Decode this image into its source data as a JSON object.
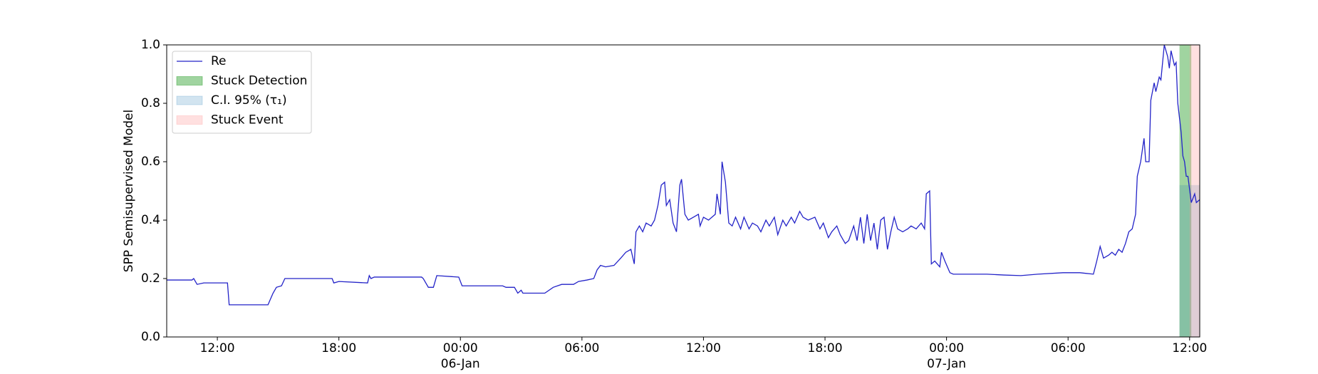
{
  "chart_data": {
    "type": "line",
    "ylabel": "SPP Semisupervised Model",
    "xlim": [
      "1900-01-05 09:30",
      "1900-01-07 12:30"
    ],
    "xticks": [
      {
        "value": "1900-01-05 12:00",
        "label": "12:00"
      },
      {
        "value": "1900-01-05 18:00",
        "label": "18:00"
      },
      {
        "value": "1900-01-06 00:00",
        "label": "00:00\n06-Jan\n1900"
      },
      {
        "value": "1900-01-06 06:00",
        "label": "06:00"
      },
      {
        "value": "1900-01-06 12:00",
        "label": "12:00"
      },
      {
        "value": "1900-01-06 18:00",
        "label": "18:00"
      },
      {
        "value": "1900-01-07 00:00",
        "label": "00:00\n07-Jan"
      },
      {
        "value": "1900-01-07 06:00",
        "label": "06:00"
      },
      {
        "value": "1900-01-07 12:00",
        "label": "12:00"
      }
    ],
    "ylim": [
      0,
      1
    ],
    "yticks": [
      {
        "value": 0,
        "label": "0.0"
      },
      0.2,
      0.4,
      0.6,
      0.8,
      {
        "value": 1,
        "label": "1.0"
      }
    ],
    "legend": "upper left",
    "x": [
      "1900-01-05 09:30",
      "1900-01-05 10:45",
      "1900-01-05 10:50",
      "1900-01-05 11:00",
      "1900-01-05 11:20",
      "1900-01-05 12:30",
      "1900-01-05 12:35",
      "1900-01-05 14:30",
      "1900-01-05 14:45",
      "1900-01-05 14:55",
      "1900-01-05 15:10",
      "1900-01-05 15:20",
      "1900-01-05 17:40",
      "1900-01-05 17:45",
      "1900-01-05 18:00",
      "1900-01-05 19:25",
      "1900-01-05 19:30",
      "1900-01-05 19:35",
      "1900-01-05 19:45",
      "1900-01-05 22:05",
      "1900-01-05 22:10",
      "1900-01-05 22:25",
      "1900-01-05 22:40",
      "1900-01-05 22:50",
      "1900-01-05 23:55",
      "1900-01-06 00:05",
      "1900-01-06 02:05",
      "1900-01-06 02:15",
      "1900-01-06 02:40",
      "1900-01-06 02:50",
      "1900-01-06 03:00",
      "1900-01-06 03:05",
      "1900-01-06 04:10",
      "1900-01-06 04:35",
      "1900-01-06 05:00",
      "1900-01-06 05:35",
      "1900-01-06 05:50",
      "1900-01-06 06:15",
      "1900-01-06 06:35",
      "1900-01-06 06:45",
      "1900-01-06 06:55",
      "1900-01-06 07:10",
      "1900-01-06 07:35",
      "1900-01-06 07:55",
      "1900-01-06 08:10",
      "1900-01-06 08:25",
      "1900-01-06 08:35",
      "1900-01-06 08:40",
      "1900-01-06 08:50",
      "1900-01-06 09:00",
      "1900-01-06 09:10",
      "1900-01-06 09:25",
      "1900-01-06 09:35",
      "1900-01-06 09:45",
      "1900-01-06 09:55",
      "1900-01-06 10:05",
      "1900-01-06 10:10",
      "1900-01-06 10:20",
      "1900-01-06 10:30",
      "1900-01-06 10:40",
      "1900-01-06 10:50",
      "1900-01-06 10:55",
      "1900-01-06 11:05",
      "1900-01-06 11:15",
      "1900-01-06 11:30",
      "1900-01-06 11:45",
      "1900-01-06 11:50",
      "1900-01-06 12:00",
      "1900-01-06 12:15",
      "1900-01-06 12:35",
      "1900-01-06 12:40",
      "1900-01-06 12:50",
      "1900-01-06 12:55",
      "1900-01-06 13:05",
      "1900-01-06 13:15",
      "1900-01-06 13:25",
      "1900-01-06 13:35",
      "1900-01-06 13:50",
      "1900-01-06 14:00",
      "1900-01-06 14:15",
      "1900-01-06 14:25",
      "1900-01-06 14:40",
      "1900-01-06 14:50",
      "1900-01-06 15:05",
      "1900-01-06 15:15",
      "1900-01-06 15:30",
      "1900-01-06 15:40",
      "1900-01-06 15:55",
      "1900-01-06 16:05",
      "1900-01-06 16:20",
      "1900-01-06 16:30",
      "1900-01-06 16:45",
      "1900-01-06 16:55",
      "1900-01-06 17:10",
      "1900-01-06 17:30",
      "1900-01-06 17:45",
      "1900-01-06 17:55",
      "1900-01-06 18:10",
      "1900-01-06 18:20",
      "1900-01-06 18:35",
      "1900-01-06 18:45",
      "1900-01-06 19:00",
      "1900-01-06 19:10",
      "1900-01-06 19:25",
      "1900-01-06 19:35",
      "1900-01-06 19:45",
      "1900-01-06 19:55",
      "1900-01-06 20:05",
      "1900-01-06 20:15",
      "1900-01-06 20:25",
      "1900-01-06 20:35",
      "1900-01-06 20:45",
      "1900-01-06 20:55",
      "1900-01-06 21:05",
      "1900-01-06 21:15",
      "1900-01-06 21:25",
      "1900-01-06 21:35",
      "1900-01-06 21:50",
      "1900-01-06 22:05",
      "1900-01-06 22:15",
      "1900-01-06 22:30",
      "1900-01-06 22:45",
      "1900-01-06 22:55",
      "1900-01-06 23:00",
      "1900-01-06 23:10",
      "1900-01-06 23:15",
      "1900-01-06 23:25",
      "1900-01-06 23:40",
      "1900-01-06 23:45",
      "1900-01-06 23:55",
      "1900-01-07 00:10",
      "1900-01-07 00:20",
      "1900-01-07 02:00",
      "1900-01-07 02:50",
      "1900-01-07 03:40",
      "1900-01-07 04:30",
      "1900-01-07 05:45",
      "1900-01-07 06:35",
      "1900-01-07 07:15",
      "1900-01-07 07:25",
      "1900-01-07 07:35",
      "1900-01-07 07:45",
      "1900-01-07 08:00",
      "1900-01-07 08:10",
      "1900-01-07 08:20",
      "1900-01-07 08:30",
      "1900-01-07 08:40",
      "1900-01-07 08:50",
      "1900-01-07 09:00",
      "1900-01-07 09:10",
      "1900-01-07 09:20",
      "1900-01-07 09:25",
      "1900-01-07 09:35",
      "1900-01-07 09:45",
      "1900-01-07 09:50",
      "1900-01-07 10:00",
      "1900-01-07 10:05",
      "1900-01-07 10:15",
      "1900-01-07 10:20",
      "1900-01-07 10:30",
      "1900-01-07 10:35",
      "1900-01-07 10:45",
      "1900-01-07 10:55",
      "1900-01-07 11:00",
      "1900-01-07 11:05",
      "1900-01-07 11:15",
      "1900-01-07 11:20",
      "1900-01-07 11:25",
      "1900-01-07 11:35",
      "1900-01-07 11:40",
      "1900-01-07 11:45",
      "1900-01-07 11:50",
      "1900-01-07 11:55",
      "1900-01-07 12:05",
      "1900-01-07 12:15",
      "1900-01-07 12:20",
      "1900-01-07 12:30"
    ],
    "series": [
      {
        "name": "Re",
        "color": "#2323c8",
        "values": [
          0.195,
          0.195,
          0.2,
          0.18,
          0.185,
          0.185,
          0.11,
          0.11,
          0.15,
          0.17,
          0.175,
          0.2,
          0.2,
          0.185,
          0.19,
          0.185,
          0.21,
          0.2,
          0.205,
          0.205,
          0.2,
          0.17,
          0.17,
          0.21,
          0.205,
          0.175,
          0.175,
          0.17,
          0.17,
          0.15,
          0.16,
          0.15,
          0.15,
          0.17,
          0.18,
          0.18,
          0.19,
          0.195,
          0.2,
          0.23,
          0.245,
          0.24,
          0.245,
          0.27,
          0.29,
          0.3,
          0.25,
          0.36,
          0.38,
          0.36,
          0.39,
          0.38,
          0.4,
          0.45,
          0.52,
          0.53,
          0.45,
          0.47,
          0.39,
          0.36,
          0.52,
          0.54,
          0.42,
          0.4,
          0.41,
          0.42,
          0.38,
          0.41,
          0.4,
          0.42,
          0.49,
          0.42,
          0.6,
          0.53,
          0.39,
          0.38,
          0.41,
          0.37,
          0.41,
          0.37,
          0.39,
          0.38,
          0.36,
          0.4,
          0.38,
          0.41,
          0.35,
          0.4,
          0.38,
          0.41,
          0.39,
          0.43,
          0.41,
          0.4,
          0.41,
          0.37,
          0.39,
          0.34,
          0.36,
          0.38,
          0.35,
          0.32,
          0.33,
          0.38,
          0.33,
          0.41,
          0.32,
          0.42,
          0.33,
          0.39,
          0.3,
          0.4,
          0.41,
          0.3,
          0.36,
          0.41,
          0.37,
          0.36,
          0.37,
          0.38,
          0.37,
          0.39,
          0.37,
          0.49,
          0.5,
          0.25,
          0.26,
          0.24,
          0.29,
          0.26,
          0.22,
          0.215,
          0.215,
          0.212,
          0.21,
          0.215,
          0.22,
          0.22,
          0.215,
          0.26,
          0.31,
          0.27,
          0.28,
          0.29,
          0.28,
          0.3,
          0.29,
          0.32,
          0.36,
          0.37,
          0.42,
          0.55,
          0.6,
          0.68,
          0.6,
          0.6,
          0.81,
          0.87,
          0.84,
          0.89,
          0.88,
          1.0,
          0.96,
          0.92,
          0.98,
          0.93,
          0.94,
          0.8,
          0.7,
          0.62,
          0.6,
          0.55,
          0.55,
          0.46,
          0.49,
          0.46,
          0.47
        ]
      }
    ],
    "regions": [
      {
        "name": "Stuck Detection",
        "color": "#2ca02c",
        "opacity": 0.45,
        "x": [
          "1900-01-07 11:30",
          "1900-01-07 12:05"
        ]
      },
      {
        "name": "C.I. 95% (τ₁)",
        "color": "#1f77b4",
        "opacity": 0.2,
        "x": [
          "1900-01-07 11:30",
          "1900-01-07 12:30"
        ],
        "y": [
          0,
          0.52
        ]
      },
      {
        "name": "Stuck Event",
        "color": "#ff9999",
        "opacity": 0.3,
        "x": [
          "1900-01-07 12:00",
          "1900-01-07 12:30"
        ]
      }
    ]
  }
}
